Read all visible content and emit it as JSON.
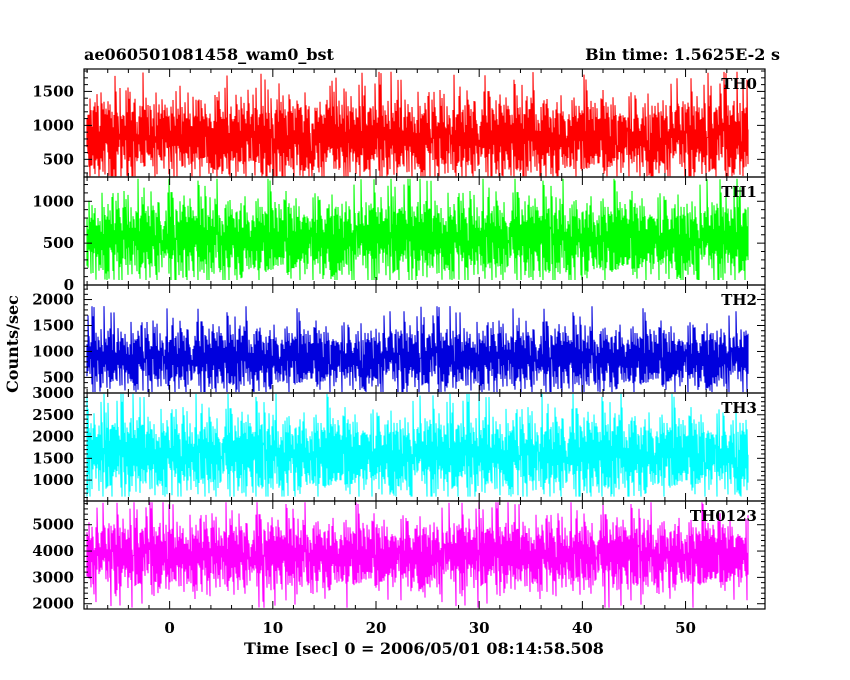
{
  "chart_data": {
    "type": "line",
    "title": "ae060501081458_wam0_bst",
    "subtitle": "Bin time: 1.5625E-2 s",
    "xlabel": "Time [sec] 0 = 2006/05/01 08:14:58.508",
    "ylabel": "Counts/sec",
    "x_range": [
      -8,
      56
    ],
    "xlim": [
      -8.3,
      57.7
    ],
    "x_ticks": [
      0,
      10,
      20,
      30,
      40,
      50
    ],
    "x_tick_labels": [
      "0",
      "10",
      "20",
      "30",
      "40",
      "50"
    ],
    "bin_time": 0.015625,
    "grid": false,
    "panels": [
      {
        "name": "TH0",
        "color": "#ff0000",
        "ylim": [
          240,
          1830
        ],
        "y_ticks": [
          500,
          1000,
          1500
        ],
        "y_tick_labels": [
          "500",
          "1000",
          "1500"
        ],
        "baseline": 830,
        "spread": 270,
        "min": 250,
        "max": 1820
      },
      {
        "name": "TH1",
        "color": "#00ff00",
        "ylim": [
          0,
          1290
        ],
        "y_ticks": [
          0,
          500,
          1000
        ],
        "y_tick_labels": [
          "0",
          "500",
          "1000"
        ],
        "baseline": 560,
        "spread": 220,
        "min": 60,
        "max": 1270
      },
      {
        "name": "TH2",
        "color": "#0000dd",
        "ylim": [
          200,
          2280
        ],
        "y_ticks": [
          500,
          1000,
          1500,
          2000
        ],
        "y_tick_labels": [
          "500",
          "1000",
          "1500",
          "2000"
        ],
        "baseline": 880,
        "spread": 280,
        "min": 220,
        "max": 2260
      },
      {
        "name": "TH3",
        "color": "#00ffff",
        "ylim": [
          520,
          3000
        ],
        "y_ticks": [
          1000,
          1500,
          2000,
          2500,
          3000
        ],
        "y_tick_labels": [
          "1000",
          "1500",
          "2000",
          "2500",
          "3000"
        ],
        "baseline": 1600,
        "spread": 420,
        "min": 620,
        "max": 2980
      },
      {
        "name": "TH0123",
        "color": "#ff00ff",
        "ylim": [
          1800,
          5900
        ],
        "y_ticks": [
          2000,
          3000,
          4000,
          5000
        ],
        "y_tick_labels": [
          "2000",
          "3000",
          "4000",
          "5000"
        ],
        "baseline": 3850,
        "spread": 620,
        "min": 1850,
        "max": 5850
      }
    ]
  }
}
